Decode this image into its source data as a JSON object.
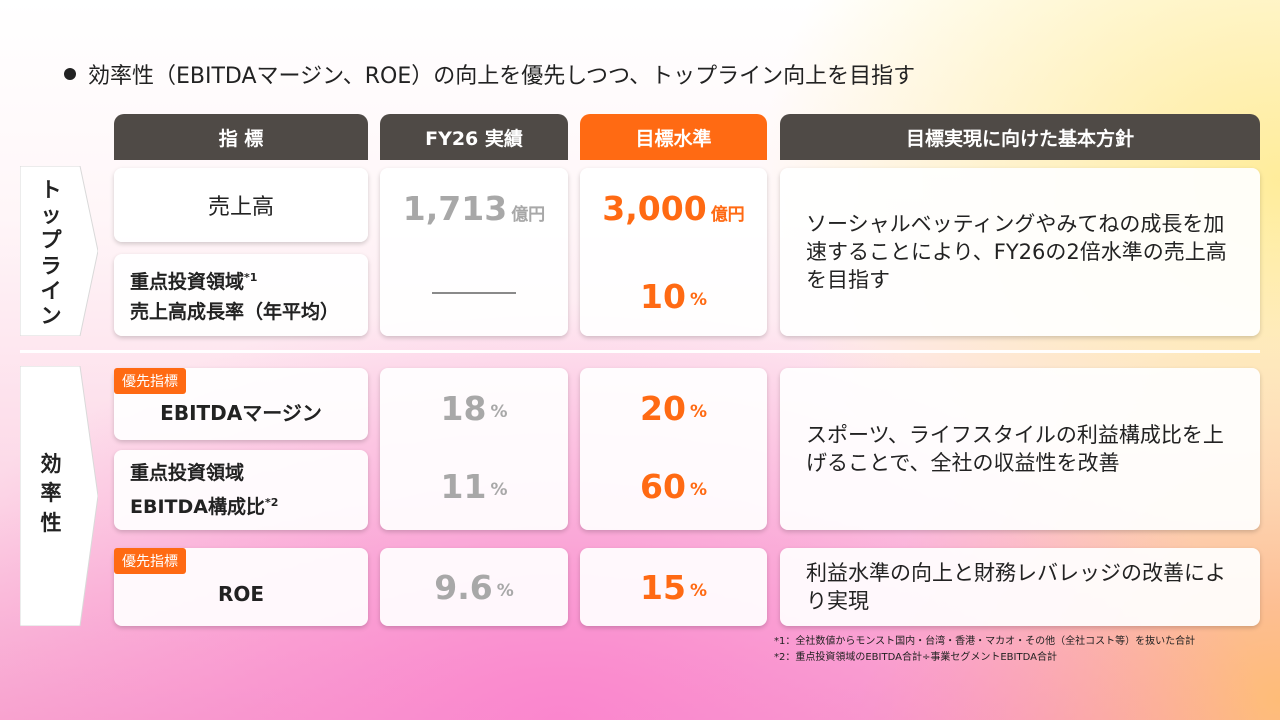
{
  "headline": "効率性（EBITDAマージン、ROE）の向上を優先しつつ、トップライン向上を目指す",
  "headers": {
    "metric": "指 標",
    "actual": "FY26 実績",
    "target": "目標水準",
    "policy": "目標実現に向けた基本方針"
  },
  "sections": {
    "topline": [
      "ト",
      "ッ",
      "プ",
      "ラ",
      "イ",
      "ン"
    ],
    "efficiency": [
      "効",
      "率",
      "性"
    ]
  },
  "rows": {
    "sales": {
      "label": "売上高",
      "actual_value": "1,713",
      "actual_unit": "億円",
      "target_value": "3,000",
      "target_unit": "億円"
    },
    "growth": {
      "label_line1": "重点投資領域",
      "label_note": "*1",
      "label_line2": "売上高成長率（年平均）",
      "target_value": "10",
      "target_unit": "%"
    },
    "ebitda_margin": {
      "badge": "優先指標",
      "label": "EBITDAマージン",
      "actual_value": "18",
      "actual_unit": "%",
      "target_value": "20",
      "target_unit": "%"
    },
    "ebitda_ratio": {
      "label_line1": "重点投資領域",
      "label_line2": "EBITDA構成比",
      "label_note": "*2",
      "actual_value": "11",
      "actual_unit": "%",
      "target_value": "60",
      "target_unit": "%"
    },
    "roe": {
      "badge": "優先指標",
      "label": "ROE",
      "actual_value": "9.6",
      "actual_unit": "%",
      "target_value": "15",
      "target_unit": "%"
    }
  },
  "policies": {
    "topline": "ソーシャルベッティングやみてねの成長を加速することにより、FY26の2倍水準の売上高を目指す",
    "efficiency": "スポーツ、ライフスタイルの利益構成比を上げることで、全社の収益性を改善",
    "roe": "利益水準の向上と財務レバレッジの改善により実現"
  },
  "notes": {
    "note1": "*1：全社数値からモンスト国内・台湾・香港・マカオ・その他（全社コスト等）を抜いた合計",
    "note2": "*2：重点投資領域のEBITDA合計÷事業セグメントEBITDA合計"
  },
  "colors": {
    "accent": "#ff6a13",
    "header_dark": "#4f4a46",
    "actual_gray": "#a8a8a8"
  }
}
